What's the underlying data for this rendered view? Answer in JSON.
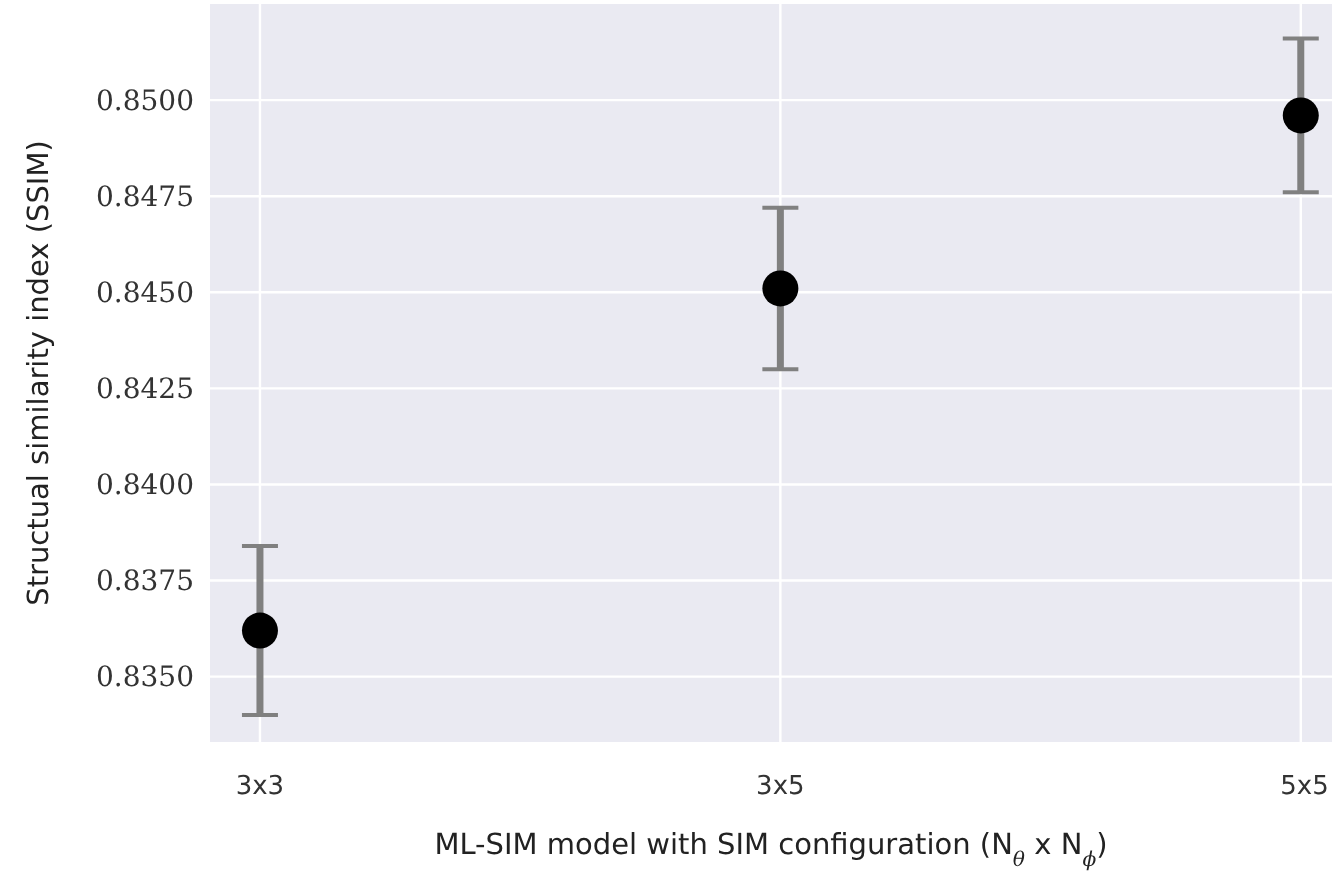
{
  "chart_data": {
    "type": "scatter",
    "xlabel": "ML-SIM model with SIM configuration (N$_{θ}$ x N$_{ϕ}$)",
    "ylabel": "Structual similarity index (SSIM)",
    "categories": [
      "3x3",
      "3x5",
      "5x5"
    ],
    "series": [
      {
        "color": "#000000",
        "values": [
          0.8362,
          0.8451,
          0.8496
        ],
        "errors": [
          0.0022,
          0.0021,
          0.002
        ]
      }
    ],
    "ylim": [
      0.8333,
      0.8525
    ],
    "yticks": [
      {
        "value": 0.835,
        "label": "0.8350"
      },
      {
        "value": 0.8375,
        "label": "0.8375"
      },
      {
        "value": 0.84,
        "label": "0.8400"
      },
      {
        "value": 0.8425,
        "label": "0.8425"
      },
      {
        "value": 0.845,
        "label": "0.8450"
      },
      {
        "value": 0.8475,
        "label": "0.8475"
      },
      {
        "value": 0.85,
        "label": "0.8500"
      }
    ],
    "grid": true,
    "marker": "circle"
  }
}
